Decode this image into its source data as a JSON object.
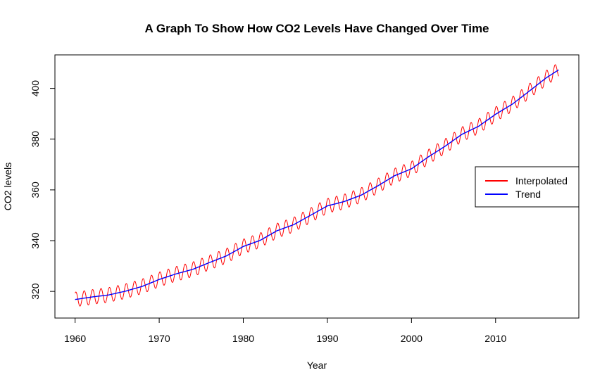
{
  "chart_data": {
    "type": "line",
    "title": "A Graph To Show How CO2 Levels Have Changed Over Time",
    "xlabel": "Year",
    "ylabel": "CO2 levels",
    "xlim": [
      1957.6,
      2019.9
    ],
    "ylim": [
      309.5,
      413.2
    ],
    "x_ticks": [
      1960,
      1970,
      1980,
      1990,
      2000,
      2010
    ],
    "y_ticks": [
      320,
      340,
      360,
      380,
      400
    ],
    "x_tick_labels": [
      "1960",
      "1970",
      "1980",
      "1990",
      "2000",
      "2010"
    ],
    "y_tick_labels": [
      "320",
      "340",
      "360",
      "380",
      "400"
    ],
    "legend_position": "right",
    "grid": false,
    "series": [
      {
        "name": "Interpolated",
        "color": "#ff0000",
        "x": [
          1960,
          1962,
          1964,
          1966,
          1968,
          1970,
          1972,
          1974,
          1976,
          1978,
          1980,
          1982,
          1984,
          1986,
          1988,
          1990,
          1992,
          1994,
          1996,
          1998,
          2000,
          2002,
          2004,
          2006,
          2008,
          2010,
          2012,
          2014,
          2016,
          2017.5
        ],
        "values": [
          316.8,
          317.8,
          318.6,
          320.1,
          322.0,
          324.7,
          326.9,
          328.7,
          331.4,
          334.0,
          337.7,
          340.1,
          343.9,
          346.3,
          350.0,
          353.7,
          355.4,
          357.9,
          361.6,
          365.6,
          368.3,
          373.0,
          377.2,
          381.9,
          385.1,
          389.8,
          393.8,
          398.9,
          404.1,
          407.3
        ],
        "seasonal_amplitude": 2.9
      },
      {
        "name": "Trend",
        "color": "#0000ff",
        "x": [
          1960,
          1962,
          1964,
          1966,
          1968,
          1970,
          1972,
          1974,
          1976,
          1978,
          1980,
          1982,
          1984,
          1986,
          1988,
          1990,
          1992,
          1994,
          1996,
          1998,
          2000,
          2002,
          2004,
          2006,
          2008,
          2010,
          2012,
          2014,
          2016,
          2017.5
        ],
        "values": [
          316.8,
          317.8,
          318.6,
          320.1,
          322.0,
          324.7,
          326.9,
          328.7,
          331.4,
          334.0,
          337.7,
          340.1,
          343.9,
          346.3,
          350.0,
          353.7,
          355.4,
          357.9,
          361.6,
          365.6,
          368.3,
          373.0,
          377.2,
          381.9,
          385.1,
          389.8,
          393.8,
          398.9,
          404.1,
          407.3
        ]
      }
    ]
  }
}
